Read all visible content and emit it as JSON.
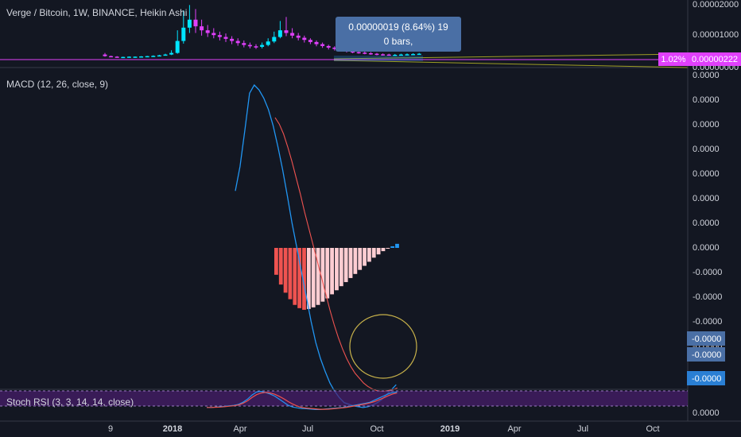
{
  "colors": {
    "background": "#131722",
    "up_candle": "#e040fb",
    "down_candle": "#00e5ff",
    "macd_line": "#2196f3",
    "signal_line": "#ef5350",
    "hist_bright": "#ef5350",
    "hist_pale": "#ffcdd2",
    "hist_blue": "#2196f3",
    "stoch_k": "#2196f3",
    "stoch_d": "#ef5350",
    "stoch_band": "#4a1e6e",
    "price_line": "#e040fb",
    "annotation_circle": "#c7b14a",
    "tooltip_bg": "#4a6fa5"
  },
  "header": {
    "title": "Verge / Bitcoin, 1W, BINANCE, Heikin Ashi"
  },
  "tooltip": {
    "line1": "0.00000019 (8.64%) 19",
    "line2": "0 bars,"
  },
  "price_axis": {
    "ticks": [
      "0.00002000",
      "0.00001000",
      "0.00000000"
    ],
    "pct_badge": "1.02%",
    "price_badge": "0.00000222"
  },
  "macd_panel": {
    "label": "MACD (12, 26, close, 9)",
    "ticks": [
      "0.0000",
      "0.0000",
      "0.0000",
      "0.0000",
      "0.0000",
      "0.0000",
      "0.0000",
      "0.0000",
      "-0.0000",
      "-0.0000",
      "-0.0000",
      "-0.0000"
    ],
    "badges": [
      "-0.0000",
      "-0.0000",
      "-0.0000"
    ]
  },
  "stoch_panel": {
    "label": "Stoch RSI (3, 3, 14, 14, close)",
    "tick": "0.0000"
  },
  "time_axis": {
    "labels": [
      "9",
      "2018",
      "Apr",
      "Jul",
      "Oct",
      "2019",
      "Apr",
      "Jul",
      "Oct"
    ]
  },
  "chart_data": {
    "type": "line",
    "x_axis_labels": [
      "9",
      "2018",
      "Apr",
      "Jul",
      "Oct",
      "2019",
      "Apr",
      "Jul",
      "Oct"
    ],
    "price_heikin_ashi": {
      "y_range": [
        0,
        2e-05
      ],
      "candles": [
        {
          "o": 1.9e-06,
          "c": 1.3e-06,
          "h": 2.5e-06,
          "l": 1.1e-06
        },
        {
          "o": 1.3e-06,
          "c": 1.1e-06,
          "h": 1.5e-06,
          "l": 9e-07
        },
        {
          "o": 1.1e-06,
          "c": 1e-06,
          "h": 1.3e-06,
          "l": 8e-07
        },
        {
          "o": 1e-06,
          "c": 1e-06,
          "h": 1.1e-06,
          "l": 8e-07
        },
        {
          "o": 1e-06,
          "c": 1.1e-06,
          "h": 1.2e-06,
          "l": 9e-07
        },
        {
          "o": 1.1e-06,
          "c": 1.1e-06,
          "h": 1.2e-06,
          "l": 1e-06
        },
        {
          "o": 1.1e-06,
          "c": 1.2e-06,
          "h": 1.3e-06,
          "l": 1e-06
        },
        {
          "o": 1.2e-06,
          "c": 1.3e-06,
          "h": 1.4e-06,
          "l": 1.1e-06
        },
        {
          "o": 1.3e-06,
          "c": 1.4e-06,
          "h": 1.6e-06,
          "l": 1.2e-06
        },
        {
          "o": 1.4e-06,
          "c": 1.6e-06,
          "h": 1.8e-06,
          "l": 1.3e-06
        },
        {
          "o": 1.6e-06,
          "c": 1.9e-06,
          "h": 2.2e-06,
          "l": 1.5e-06
        },
        {
          "o": 1.9e-06,
          "c": 2.5e-06,
          "h": 3.5e-06,
          "l": 1.7e-06
        },
        {
          "o": 2.5e-06,
          "c": 7e-06,
          "h": 1.1e-05,
          "l": 2.2e-06
        },
        {
          "o": 7e-06,
          "c": 1.2e-05,
          "h": 1.85e-05,
          "l": 6e-06
        },
        {
          "o": 1.2e-05,
          "c": 1.5e-05,
          "h": 2.05e-05,
          "l": 1e-05
        },
        {
          "o": 1.5e-05,
          "c": 1.25e-05,
          "h": 1.9e-05,
          "l": 1e-05
        },
        {
          "o": 1.25e-05,
          "c": 1.1e-05,
          "h": 1.5e-05,
          "l": 9e-06
        },
        {
          "o": 1.1e-05,
          "c": 1e-05,
          "h": 1.3e-05,
          "l": 8.5e-06
        },
        {
          "o": 1e-05,
          "c": 9.2e-06,
          "h": 1.18e-05,
          "l": 8e-06
        },
        {
          "o": 9.2e-06,
          "c": 8.5e-06,
          "h": 1.05e-05,
          "l": 7.2e-06
        },
        {
          "o": 8.5e-06,
          "c": 7.8e-06,
          "h": 9.8e-06,
          "l": 6.6e-06
        },
        {
          "o": 7.8e-06,
          "c": 7e-06,
          "h": 8.8e-06,
          "l": 5.8e-06
        },
        {
          "o": 7e-06,
          "c": 6.2e-06,
          "h": 8e-06,
          "l": 5.2e-06
        },
        {
          "o": 6.2e-06,
          "c": 5.5e-06,
          "h": 7.2e-06,
          "l": 4.6e-06
        },
        {
          "o": 5.5e-06,
          "c": 5e-06,
          "h": 6.4e-06,
          "l": 4.2e-06
        },
        {
          "o": 5e-06,
          "c": 4.8e-06,
          "h": 5.8e-06,
          "l": 4e-06
        },
        {
          "o": 4.8e-06,
          "c": 5.5e-06,
          "h": 6.4e-06,
          "l": 4.2e-06
        },
        {
          "o": 5.5e-06,
          "c": 6.8e-06,
          "h": 8e-06,
          "l": 5e-06
        },
        {
          "o": 6.8e-06,
          "c": 8.5e-06,
          "h": 1.05e-05,
          "l": 6.2e-06
        },
        {
          "o": 8.5e-06,
          "c": 1.1e-05,
          "h": 1.45e-05,
          "l": 8e-06
        },
        {
          "o": 1.1e-05,
          "c": 1e-05,
          "h": 1.6e-05,
          "l": 8.8e-06
        },
        {
          "o": 1e-05,
          "c": 9e-06,
          "h": 1.18e-05,
          "l": 8e-06
        },
        {
          "o": 9e-06,
          "c": 8.2e-06,
          "h": 1e-05,
          "l": 7.2e-06
        },
        {
          "o": 8.2e-06,
          "c": 7.4e-06,
          "h": 9e-06,
          "l": 6.4e-06
        },
        {
          "o": 7.4e-06,
          "c": 6.6e-06,
          "h": 8e-06,
          "l": 5.8e-06
        },
        {
          "o": 6.6e-06,
          "c": 5.8e-06,
          "h": 7.2e-06,
          "l": 5e-06
        },
        {
          "o": 5.8e-06,
          "c": 5.1e-06,
          "h": 6.4e-06,
          "l": 4.4e-06
        },
        {
          "o": 5.1e-06,
          "c": 4.5e-06,
          "h": 5.6e-06,
          "l": 3.8e-06
        },
        {
          "o": 4.5e-06,
          "c": 4e-06,
          "h": 5e-06,
          "l": 3.4e-06
        },
        {
          "o": 4e-06,
          "c": 3.5e-06,
          "h": 4.5e-06,
          "l": 3e-06
        },
        {
          "o": 3.5e-06,
          "c": 3.1e-06,
          "h": 4e-06,
          "l": 2.7e-06
        },
        {
          "o": 3.1e-06,
          "c": 2.8e-06,
          "h": 3.6e-06,
          "l": 2.4e-06
        },
        {
          "o": 2.8e-06,
          "c": 2.6e-06,
          "h": 3.2e-06,
          "l": 2.2e-06
        },
        {
          "o": 2.6e-06,
          "c": 2.4e-06,
          "h": 3e-06,
          "l": 2e-06
        },
        {
          "o": 2.4e-06,
          "c": 2.2e-06,
          "h": 2.8e-06,
          "l": 1.8e-06
        },
        {
          "o": 2.2e-06,
          "c": 2e-06,
          "h": 2.5e-06,
          "l": 1.6e-06
        },
        {
          "o": 2e-06,
          "c": 1.9e-06,
          "h": 2.3e-06,
          "l": 1.5e-06
        },
        {
          "o": 1.9e-06,
          "c": 1.8e-06,
          "h": 2.2e-06,
          "l": 1.5e-06
        },
        {
          "o": 1.8e-06,
          "c": 1.8e-06,
          "h": 2.1e-06,
          "l": 1.5e-06
        },
        {
          "o": 1.8e-06,
          "c": 1.9e-06,
          "h": 2.2e-06,
          "l": 1.6e-06
        },
        {
          "o": 1.9e-06,
          "c": 2e-06,
          "h": 2.3e-06,
          "l": 1.7e-06
        },
        {
          "o": 2e-06,
          "c": 2.1e-06,
          "h": 2.4e-06,
          "l": 1.8e-06
        },
        {
          "o": 2.1e-06,
          "c": 2.2e-06,
          "h": 2.5e-06,
          "l": 1.9e-06
        }
      ]
    },
    "macd": {
      "y_range": [
        -1,
        1
      ],
      "macd_line": [
        0.35,
        0.5,
        0.72,
        0.95,
        1.0,
        0.97,
        0.92,
        0.85,
        0.75,
        0.62,
        0.48,
        0.32,
        0.15,
        0.0,
        -0.15,
        -0.3,
        -0.45,
        -0.58,
        -0.68,
        -0.76,
        -0.83,
        -0.88,
        -0.92,
        -0.95,
        -0.96,
        -0.97,
        -0.975,
        -0.98,
        -0.975,
        -0.965,
        -0.95,
        -0.93,
        -0.9,
        -0.87,
        -0.84
      ],
      "signal_line": [
        0.8,
        0.76,
        0.7,
        0.62,
        0.53,
        0.43,
        0.33,
        0.22,
        0.12,
        0.02,
        -0.08,
        -0.18,
        -0.28,
        -0.38,
        -0.47,
        -0.55,
        -0.62,
        -0.68,
        -0.73,
        -0.77,
        -0.8,
        -0.83,
        -0.85,
        -0.865,
        -0.875,
        -0.88,
        -0.88,
        -0.875,
        -0.87,
        -0.86
      ],
      "histogram": [
        -0.33,
        -0.45,
        -0.55,
        -0.63,
        -0.7,
        -0.74,
        -0.76,
        -0.75,
        -0.73,
        -0.7,
        -0.66,
        -0.62,
        -0.57,
        -0.52,
        -0.47,
        -0.42,
        -0.37,
        -0.32,
        -0.27,
        -0.22,
        -0.17,
        -0.12,
        -0.08,
        -0.04,
        -0.01,
        0.02,
        0.05
      ]
    },
    "stoch_rsi": {
      "y_range": [
        0,
        100
      ],
      "k": [
        20,
        20,
        22,
        24,
        25,
        28,
        30,
        35,
        45,
        60,
        80,
        95,
        98,
        92,
        85,
        75,
        60,
        45,
        30,
        22,
        18,
        15,
        14,
        12,
        10,
        10,
        12,
        14,
        16,
        18,
        20,
        24,
        28,
        32,
        36,
        40,
        45,
        55,
        65,
        75,
        85,
        92,
        95
      ],
      "d": [
        20,
        20,
        21,
        22,
        24,
        26,
        28,
        32,
        40,
        52,
        68,
        82,
        90,
        93,
        90,
        84,
        74,
        62,
        48,
        36,
        26,
        20,
        17,
        15,
        13,
        11,
        11,
        12,
        14,
        16,
        18,
        21,
        25,
        29,
        33,
        37,
        42,
        48,
        57,
        66,
        76,
        85,
        90
      ]
    }
  }
}
